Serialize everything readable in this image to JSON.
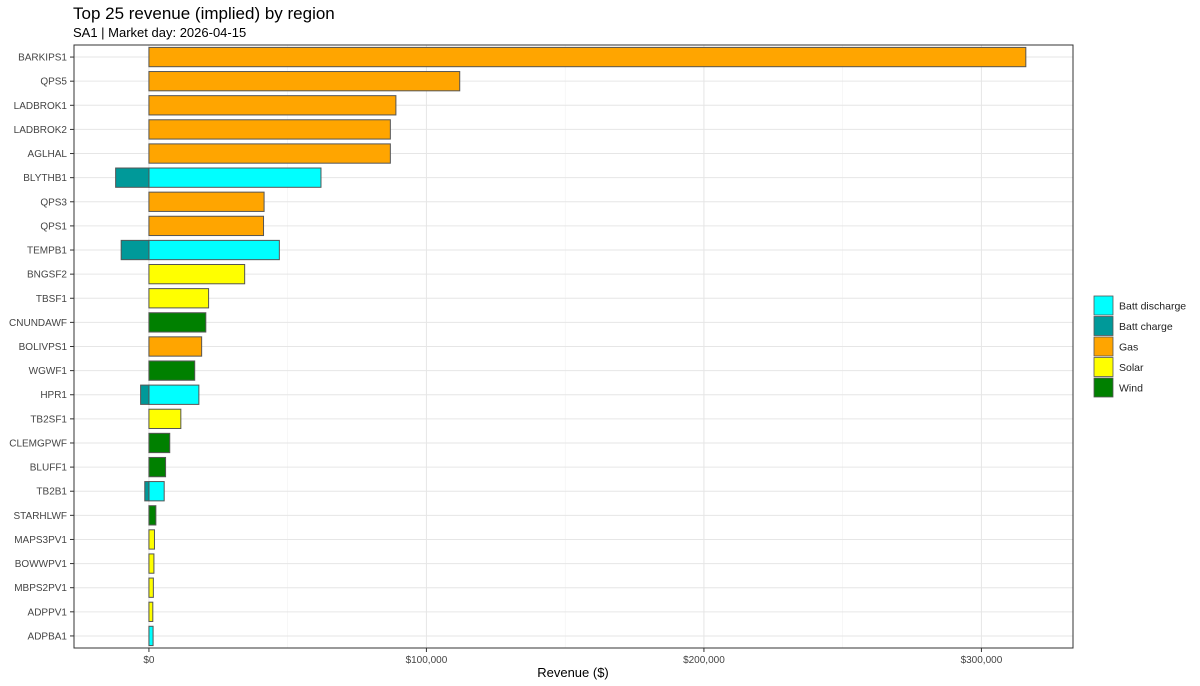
{
  "chart_data": {
    "type": "bar",
    "orientation": "horizontal",
    "stacked": true,
    "title": "Top 25 revenue (implied) by region",
    "subtitle": "SA1 | Market day: 2026-04-15",
    "xlabel": "Revenue ($)",
    "ylabel": "",
    "xlim": [
      -27000,
      333000
    ],
    "x_ticks": [
      {
        "value": 0,
        "label": "$0"
      },
      {
        "value": 100000,
        "label": "$100,000"
      },
      {
        "value": 200000,
        "label": "$200,000"
      },
      {
        "value": 300000,
        "label": "$300,000"
      }
    ],
    "grid": true,
    "legend_position": "right",
    "categories": [
      "BARKIPS1",
      "QPS5",
      "LADBROK1",
      "LADBROK2",
      "AGLHAL",
      "BLYTHB1",
      "QPS3",
      "QPS1",
      "TEMPB1",
      "BNGSF2",
      "TBSF1",
      "CNUNDAWF",
      "BOLIVPS1",
      "WGWF1",
      "HPR1",
      "TB2SF1",
      "CLEMGPWF",
      "BLUFF1",
      "TB2B1",
      "STARHLWF",
      "MAPS3PV1",
      "BOWWPV1",
      "MBPS2PV1",
      "ADPPV1",
      "ADPBA1"
    ],
    "series": [
      {
        "name": "Batt discharge",
        "color": "#00FFFF",
        "values": [
          0,
          0,
          0,
          0,
          0,
          62000,
          0,
          0,
          47000,
          0,
          0,
          0,
          0,
          0,
          18000,
          0,
          0,
          0,
          5500,
          0,
          0,
          0,
          0,
          0,
          1500
        ]
      },
      {
        "name": "Batt charge",
        "color": "#009999",
        "values": [
          0,
          0,
          0,
          0,
          0,
          -12000,
          0,
          0,
          -10000,
          0,
          0,
          0,
          0,
          0,
          -3000,
          0,
          0,
          0,
          -1500,
          0,
          0,
          0,
          0,
          0,
          0
        ]
      },
      {
        "name": "Gas",
        "color": "#FFA500",
        "values": [
          316000,
          112000,
          89000,
          87000,
          87000,
          0,
          41500,
          41300,
          0,
          0,
          0,
          0,
          19000,
          0,
          0,
          0,
          0,
          0,
          0,
          0,
          0,
          0,
          0,
          0,
          0
        ]
      },
      {
        "name": "Solar",
        "color": "#FFFF00",
        "values": [
          0,
          0,
          0,
          0,
          0,
          0,
          0,
          0,
          0,
          34500,
          21500,
          0,
          0,
          0,
          0,
          11500,
          0,
          0,
          0,
          0,
          2000,
          1800,
          1600,
          1400,
          0
        ]
      },
      {
        "name": "Wind",
        "color": "#008000",
        "values": [
          0,
          0,
          0,
          0,
          0,
          0,
          0,
          0,
          0,
          0,
          0,
          20500,
          0,
          16500,
          0,
          0,
          7500,
          6000,
          0,
          2500,
          0,
          0,
          0,
          0,
          0
        ]
      }
    ]
  }
}
